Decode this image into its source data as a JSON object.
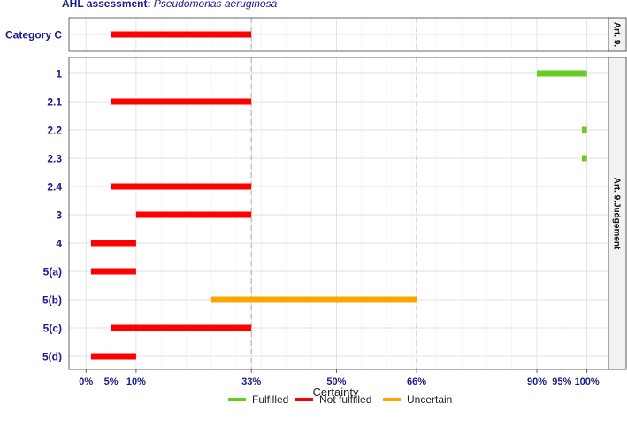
{
  "title": {
    "prefix": "AHL  assessment: ",
    "species": "Pseudomonas aeruginosa"
  },
  "chart_data": {
    "type": "range_bar",
    "xlabel": "Certainty",
    "xlim": [
      0,
      100
    ],
    "x_ticks": [
      0,
      5,
      10,
      33,
      50,
      66,
      90,
      95,
      100
    ],
    "x_tick_labels": [
      "0%",
      "5%",
      "10%",
      "33%",
      "50%",
      "66%",
      "90%",
      "95%",
      "100%"
    ],
    "dashed_reference_lines": [
      33,
      66
    ],
    "legend": {
      "position": "bottom",
      "entries": [
        {
          "label": "Fulfilled",
          "color": "#66cc22"
        },
        {
          "label": "Not fulfilled",
          "color": "#ff0000"
        },
        {
          "label": "Uncertain",
          "color": "#ffa500"
        }
      ]
    },
    "panels": [
      {
        "strip_label": "Art. 9.",
        "rows": [
          {
            "label": "Category C",
            "start": 5,
            "end": 33,
            "status": "Not fulfilled"
          }
        ]
      },
      {
        "strip_label": "Art. 9.Judgement",
        "rows": [
          {
            "label": "1",
            "start": 90,
            "end": 100,
            "status": "Fulfilled"
          },
          {
            "label": "2.1",
            "start": 5,
            "end": 33,
            "status": "Not fulfilled"
          },
          {
            "label": "2.2",
            "start": 99,
            "end": 100,
            "status": "Fulfilled"
          },
          {
            "label": "2.3",
            "start": 99,
            "end": 100,
            "status": "Fulfilled"
          },
          {
            "label": "2.4",
            "start": 5,
            "end": 33,
            "status": "Not fulfilled"
          },
          {
            "label": "3",
            "start": 10,
            "end": 33,
            "status": "Not fulfilled"
          },
          {
            "label": "4",
            "start": 1,
            "end": 10,
            "status": "Not fulfilled"
          },
          {
            "label": "5(a)",
            "start": 1,
            "end": 10,
            "status": "Not fulfilled"
          },
          {
            "label": "5(b)",
            "start": 25,
            "end": 66,
            "status": "Uncertain"
          },
          {
            "label": "5(c)",
            "start": 5,
            "end": 33,
            "status": "Not fulfilled"
          },
          {
            "label": "5(d)",
            "start": 1,
            "end": 10,
            "status": "Not fulfilled"
          }
        ]
      }
    ]
  }
}
